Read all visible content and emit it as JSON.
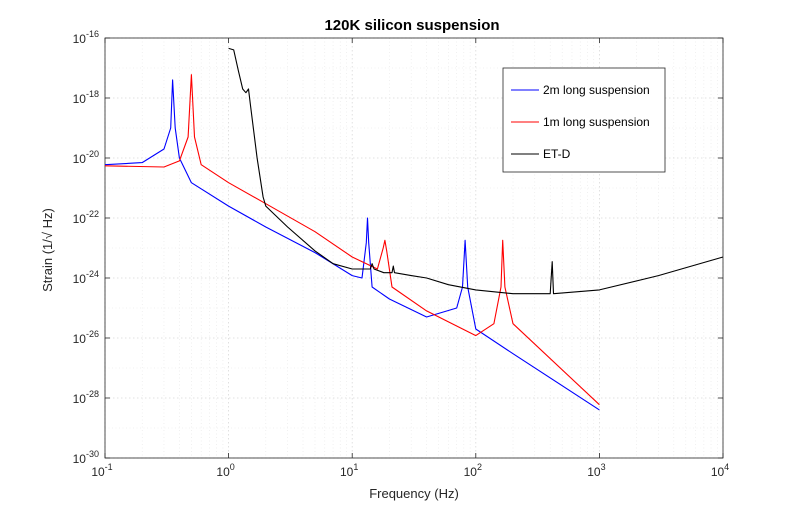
{
  "chart_data": {
    "type": "line",
    "title": "120K silicon suspension",
    "xlabel": "Frequency (Hz)",
    "ylabel": "Strain (1/√ Hz)",
    "xscale": "log",
    "yscale": "log",
    "xlim": [
      0.1,
      10000
    ],
    "ylim": [
      1e-30,
      1e-16
    ],
    "x_ticks": [
      {
        "base": "10",
        "exp": "-1",
        "value": 0.1
      },
      {
        "base": "10",
        "exp": "0",
        "value": 1
      },
      {
        "base": "10",
        "exp": "1",
        "value": 10
      },
      {
        "base": "10",
        "exp": "2",
        "value": 100
      },
      {
        "base": "10",
        "exp": "3",
        "value": 1000
      },
      {
        "base": "10",
        "exp": "4",
        "value": 10000
      }
    ],
    "y_ticks": [
      {
        "base": "10",
        "exp": "-16",
        "value": 1e-16
      },
      {
        "base": "10",
        "exp": "-18",
        "value": 1e-18
      },
      {
        "base": "10",
        "exp": "-20",
        "value": 1e-20
      },
      {
        "base": "10",
        "exp": "-22",
        "value": 1e-22
      },
      {
        "base": "10",
        "exp": "-24",
        "value": 1e-24
      },
      {
        "base": "10",
        "exp": "-26",
        "value": 1e-26
      },
      {
        "base": "10",
        "exp": "-28",
        "value": 1e-28
      },
      {
        "base": "10",
        "exp": "-30",
        "value": 1e-30
      }
    ],
    "grid": true,
    "legend_position": "top-right",
    "series": [
      {
        "name": "2m long suspension",
        "color": "#0000ff",
        "points": [
          [
            0.1,
            6e-21
          ],
          [
            0.2,
            7e-21
          ],
          [
            0.3,
            2e-20
          ],
          [
            0.34,
            1e-19
          ],
          [
            0.352,
            4e-18
          ],
          [
            0.37,
            1e-19
          ],
          [
            0.4,
            1e-20
          ],
          [
            0.5,
            1.5e-21
          ],
          [
            1,
            2.5e-22
          ],
          [
            2,
            5e-23
          ],
          [
            5,
            7e-24
          ],
          [
            10,
            1.2e-24
          ],
          [
            12,
            1e-24
          ],
          [
            13,
            1.5e-23
          ],
          [
            13.3,
            1e-22
          ],
          [
            13.6,
            1.5e-23
          ],
          [
            14.5,
            5e-25
          ],
          [
            20,
            2e-25
          ],
          [
            40,
            5e-26
          ],
          [
            70,
            1e-25
          ],
          [
            78,
            5e-25
          ],
          [
            82,
            1.8e-23
          ],
          [
            86,
            5e-25
          ],
          [
            100,
            2e-26
          ],
          [
            200,
            3e-27
          ],
          [
            1000,
            4e-29
          ]
        ]
      },
      {
        "name": "1m long suspension",
        "color": "#ff0000",
        "points": [
          [
            0.1,
            5.5e-21
          ],
          [
            0.3,
            5e-21
          ],
          [
            0.4,
            8e-21
          ],
          [
            0.47,
            5e-20
          ],
          [
            0.5,
            6e-18
          ],
          [
            0.53,
            5e-20
          ],
          [
            0.6,
            6e-21
          ],
          [
            1,
            1.5e-21
          ],
          [
            2,
            3e-22
          ],
          [
            5,
            3.5e-23
          ],
          [
            10,
            5e-24
          ],
          [
            16,
            2e-24
          ],
          [
            17.8,
            1e-23
          ],
          [
            18.4,
            1.8e-23
          ],
          [
            19,
            8e-24
          ],
          [
            21,
            5e-25
          ],
          [
            40,
            8e-26
          ],
          [
            100,
            1.2e-26
          ],
          [
            140,
            3e-26
          ],
          [
            160,
            5e-25
          ],
          [
            165,
            1.8e-23
          ],
          [
            172,
            5e-25
          ],
          [
            200,
            3e-26
          ],
          [
            1000,
            6e-29
          ]
        ]
      },
      {
        "name": "ET-D",
        "color": "#000000",
        "points": [
          [
            1.0,
            4.5e-17
          ],
          [
            1.1,
            4e-17
          ],
          [
            1.2,
            8e-18
          ],
          [
            1.3,
            2e-18
          ],
          [
            1.38,
            1.5e-18
          ],
          [
            1.45,
            2e-18
          ],
          [
            1.5,
            6e-19
          ],
          [
            1.7,
            1e-20
          ],
          [
            1.9,
            5e-22
          ],
          [
            2,
            2.5e-22
          ],
          [
            3,
            5e-23
          ],
          [
            5,
            8e-24
          ],
          [
            7,
            3e-24
          ],
          [
            10,
            2e-24
          ],
          [
            14,
            2e-24
          ],
          [
            14.5,
            3e-24
          ],
          [
            15,
            2e-24
          ],
          [
            18,
            1.5e-24
          ],
          [
            21,
            1.5e-24
          ],
          [
            21.5,
            2.5e-24
          ],
          [
            22,
            1.5e-24
          ],
          [
            30,
            1.2e-24
          ],
          [
            40,
            1e-24
          ],
          [
            60,
            6e-25
          ],
          [
            100,
            4e-25
          ],
          [
            200,
            3e-25
          ],
          [
            400,
            3e-25
          ],
          [
            415,
            3.5e-24
          ],
          [
            425,
            3e-25
          ],
          [
            1000,
            4e-25
          ],
          [
            3000,
            1.2e-24
          ],
          [
            10000,
            5e-24
          ]
        ]
      }
    ]
  }
}
